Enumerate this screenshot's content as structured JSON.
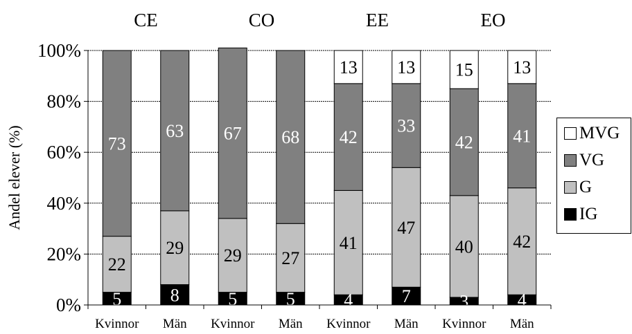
{
  "chart_data": {
    "type": "bar",
    "stacked": true,
    "percent_stacked": true,
    "ylabel": "Andel elever (%)",
    "ylim": [
      0,
      100
    ],
    "yticks": [
      "0%",
      "20%",
      "40%",
      "60%",
      "80%",
      "100%"
    ],
    "grid": true,
    "legend_position": "right",
    "groups": [
      {
        "label": "CE",
        "categories": [
          "Kvinnor",
          "Män"
        ]
      },
      {
        "label": "CO",
        "categories": [
          "Kvinnor",
          "Män"
        ]
      },
      {
        "label": "EE",
        "categories": [
          "Kvinnor",
          "Män"
        ]
      },
      {
        "label": "EO",
        "categories": [
          "Kvinnor",
          "Män"
        ]
      }
    ],
    "categories": [
      "Kvinnor",
      "Män",
      "Kvinnor",
      "Män",
      "Kvinnor",
      "Män",
      "Kvinnor",
      "Män"
    ],
    "series": [
      {
        "name": "IG",
        "color": "#000000",
        "label_color": "#ffffff",
        "values": [
          5,
          8,
          5,
          5,
          4,
          7,
          3,
          4
        ]
      },
      {
        "name": "G",
        "color": "#c0c0c0",
        "label_color": "#000000",
        "values": [
          22,
          29,
          29,
          27,
          41,
          47,
          40,
          42
        ]
      },
      {
        "name": "VG",
        "color": "#808080",
        "label_color": "#ffffff",
        "values": [
          73,
          63,
          67,
          68,
          42,
          33,
          42,
          41
        ]
      },
      {
        "name": "MVG",
        "color": "#ffffff",
        "label_color": "#000000",
        "values": [
          null,
          null,
          null,
          null,
          13,
          13,
          15,
          13
        ]
      }
    ]
  }
}
